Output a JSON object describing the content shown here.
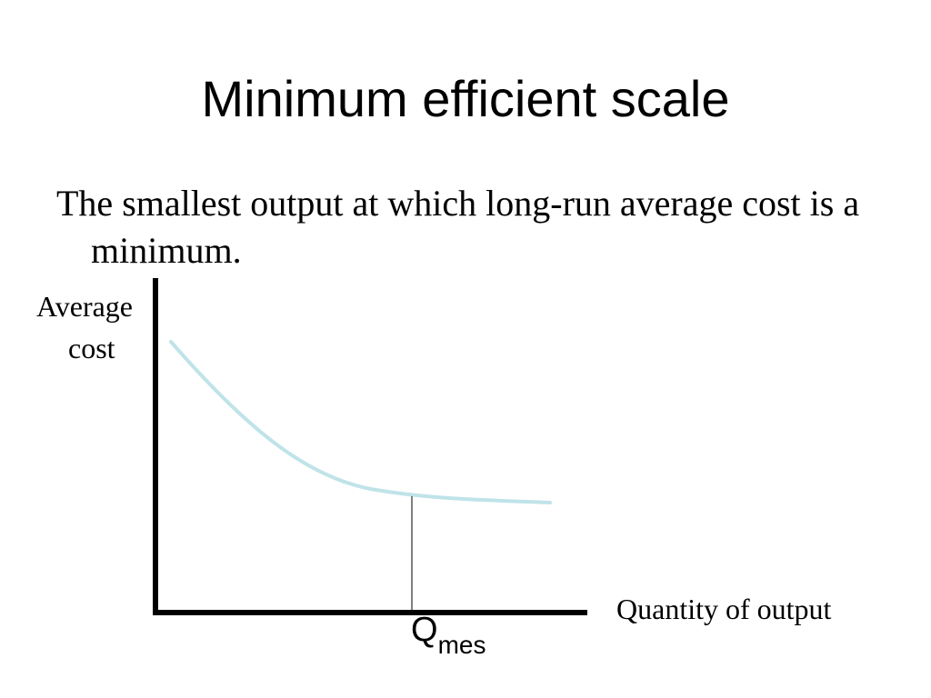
{
  "slide": {
    "title": "Minimum efficient scale",
    "text": "The smallest output at which long-run average cost is a minimum."
  },
  "diagram": {
    "y_axis_label_line1": "Average",
    "y_axis_label_line2": "cost",
    "x_axis_label": "Quantity of output",
    "marker_label": "Q",
    "marker_label_subscript": "mes",
    "curve_color": "#bfe3e8",
    "axis_color": "#000000"
  }
}
